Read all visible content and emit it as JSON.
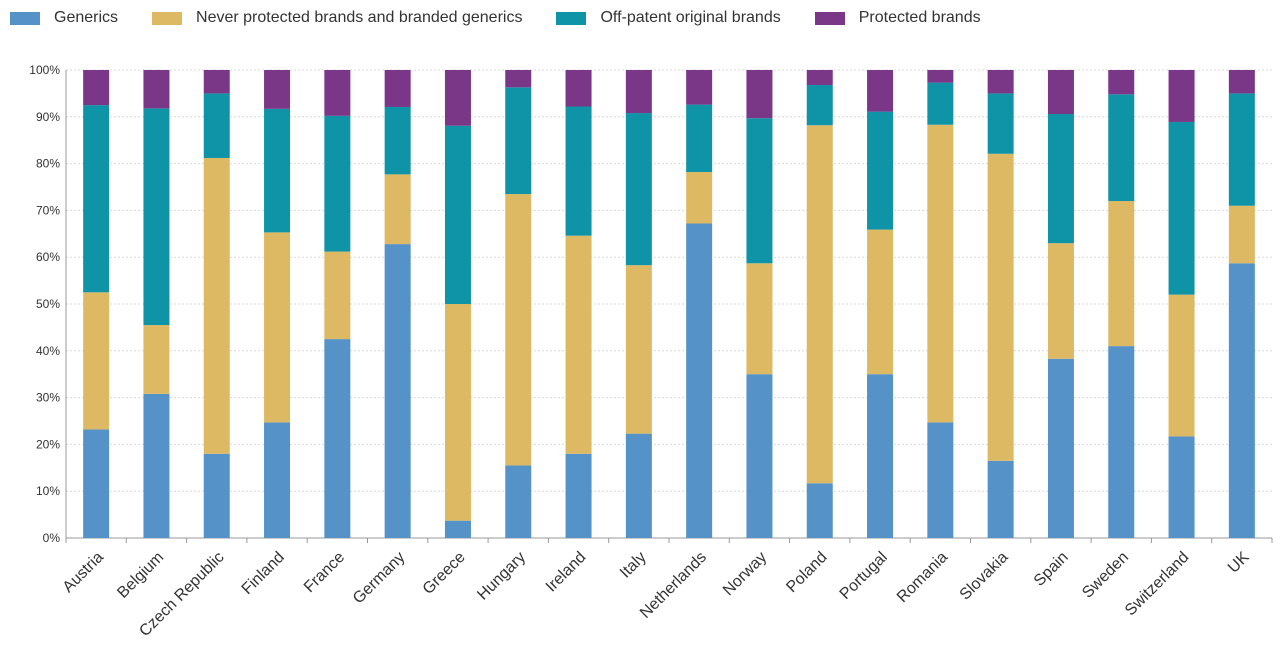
{
  "chart_data": {
    "type": "bar",
    "stacked": true,
    "categories": [
      "Austria",
      "Belgium",
      "Czech Republic",
      "Finland",
      "France",
      "Germany",
      "Greece",
      "Hungary",
      "Ireland",
      "Italy",
      "Netherlands",
      "Norway",
      "Poland",
      "Portugal",
      "Romania",
      "Slovakia",
      "Spain",
      "Sweden",
      "Switzerland",
      "UK"
    ],
    "series": [
      {
        "name": "Generics",
        "color": "#5592c8",
        "values": [
          23.2,
          30.8,
          18,
          24.7,
          42.5,
          62.8,
          3.7,
          15.5,
          18,
          22.3,
          67.2,
          35,
          11.7,
          35,
          24.7,
          16.5,
          38.3,
          41,
          21.7,
          58.7
        ]
      },
      {
        "name": "Never protected brands and branded generics",
        "color": "#ddb963",
        "values": [
          29.3,
          14.7,
          63.2,
          40.6,
          18.7,
          14.9,
          46.3,
          58,
          46.6,
          36,
          11,
          23.7,
          76.5,
          30.9,
          63.6,
          65.6,
          24.7,
          31,
          30.3,
          12.3
        ]
      },
      {
        "name": "Off-patent original brands",
        "color": "#0e94a6",
        "values": [
          40,
          46.3,
          13.8,
          26.4,
          29,
          14.4,
          38.1,
          22.8,
          27.6,
          32.5,
          14.4,
          31,
          8.6,
          25.2,
          9,
          12.9,
          27.6,
          22.8,
          36.9,
          24
        ]
      },
      {
        "name": "Protected brands",
        "color": "#7a3687",
        "values": [
          7.5,
          8.2,
          5,
          8.3,
          9.8,
          7.9,
          11.9,
          3.7,
          7.8,
          9.2,
          7.4,
          10.3,
          3.2,
          8.9,
          2.7,
          5,
          9.4,
          5.2,
          11.1,
          5
        ]
      }
    ],
    "yticks": [
      "0%",
      "10%",
      "20%",
      "30%",
      "40%",
      "50%",
      "60%",
      "70%",
      "80%",
      "90%",
      "100%"
    ],
    "ylim": [
      0,
      100
    ],
    "title": "",
    "xlabel": "",
    "ylabel": "",
    "legend_position": "top-left",
    "grid": true
  }
}
